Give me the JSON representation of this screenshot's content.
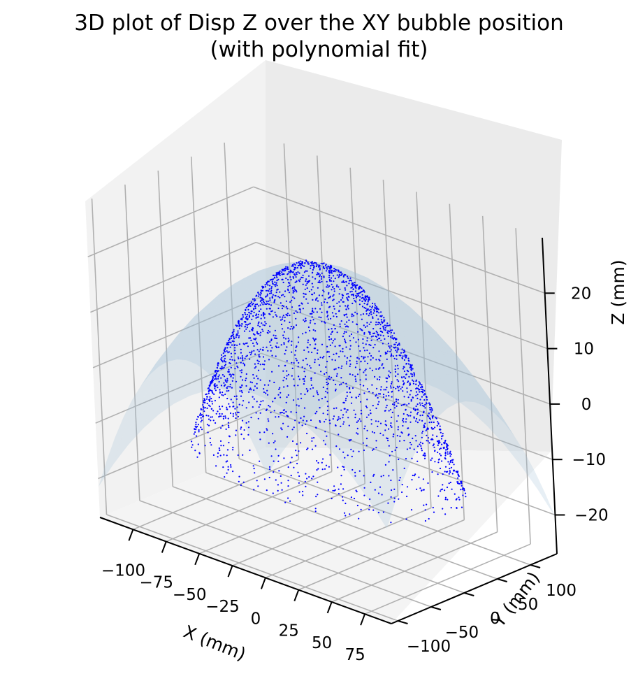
{
  "chart_data": {
    "type": "scatter",
    "projection": "3d",
    "title": "3D plot of Disp Z over the XY bubble position",
    "subtitle": "(with polynomial fit)",
    "xlabel": "X (mm)",
    "ylabel": "Y (mm)",
    "zlabel": "Z (mm)",
    "xlim": [
      -125,
      95
    ],
    "ylim": [
      -110,
      140
    ],
    "zlim": [
      -27,
      30
    ],
    "x_ticks": [
      -100,
      -75,
      -50,
      -25,
      0,
      25,
      50,
      75
    ],
    "y_ticks": [
      -100,
      -50,
      0,
      50,
      100
    ],
    "z_ticks": [
      -20,
      -10,
      0,
      10,
      20
    ],
    "x_tick_labels": [
      "−100",
      "−75",
      "−50",
      "−25",
      "0",
      "25",
      "50",
      "75"
    ],
    "y_tick_labels": [
      "−100",
      "−50",
      "0",
      "50",
      "100"
    ],
    "z_tick_labels": [
      "−20",
      "−10",
      "0",
      "10",
      "20"
    ],
    "grid": true,
    "series": [
      {
        "kind": "points",
        "color": "#0000ff",
        "description_dome": "dome of displacement points",
        "x_range": [
          -100,
          85
        ],
        "y_range": [
          -90,
          100
        ],
        "z_peak": 23,
        "z_edge": -14
      },
      {
        "kind": "surface",
        "color": "#9fbfd8",
        "alpha": 0.45,
        "x_range": [
          -125,
          95
        ],
        "y_range": [
          -110,
          140
        ],
        "z_peak": 23,
        "z_corner": -27
      }
    ]
  }
}
